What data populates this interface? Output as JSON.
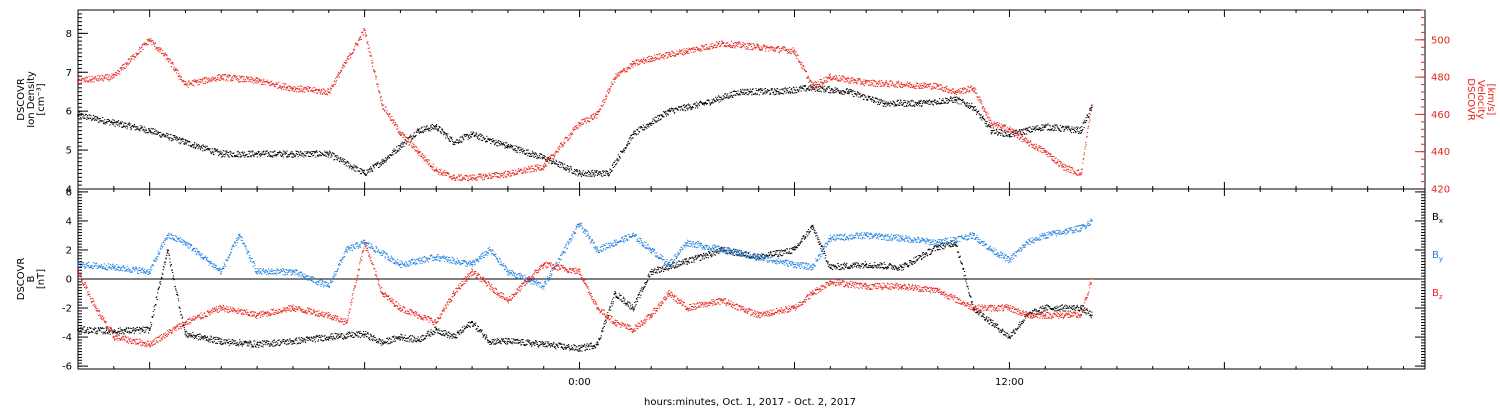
{
  "xlabel": "hours:minutes, Oct.  1, 2017 - Oct.  2, 2017",
  "colors": {
    "black": "#000000",
    "red": "#e8231b",
    "blue": "#1f7fe0"
  },
  "chart_data": [
    {
      "type": "scatter",
      "panel": "top",
      "title": "",
      "ylabel": [
        "DSCOVR",
        "Ion Density",
        "[cm⁻³]"
      ],
      "ylabel_right": [
        "DSCOVR",
        "Velocity",
        "[km/s]"
      ],
      "x_range_hours": [
        -14.0,
        23.6
      ],
      "x_ticks": [
        {
          "x": 0,
          "label": "0:00"
        },
        {
          "x": 12,
          "label": "12:00"
        }
      ],
      "ylim": [
        4,
        8.6
      ],
      "y_ticks": [
        4,
        5,
        6,
        7,
        8
      ],
      "y2lim": [
        420,
        516
      ],
      "y2_ticks": [
        420,
        440,
        460,
        480,
        500
      ],
      "series": [
        {
          "name": "",
          "axis": "left",
          "color": "#000000",
          "x": [
            -14.0,
            -13.0,
            -12.0,
            -11.0,
            -10.0,
            -9.0,
            -8.0,
            -7.0,
            -6.0,
            -5.5,
            -5.0,
            -4.5,
            -4.0,
            -3.5,
            -3.0,
            -2.0,
            -1.0,
            0.0,
            0.8,
            1.5,
            2.5,
            3.5,
            4.5,
            5.5,
            6.5,
            7.5,
            8.5,
            9.5,
            10.5,
            11.0,
            11.5,
            12.0,
            12.5,
            13.0,
            14.0,
            14.3
          ],
          "y": [
            5.9,
            5.7,
            5.5,
            5.2,
            4.9,
            4.9,
            4.9,
            4.9,
            4.4,
            4.7,
            5.1,
            5.5,
            5.6,
            5.2,
            5.4,
            5.1,
            4.8,
            4.4,
            4.4,
            5.4,
            6.0,
            6.2,
            6.5,
            6.5,
            6.6,
            6.5,
            6.2,
            6.2,
            6.3,
            6.1,
            5.5,
            5.4,
            5.5,
            5.6,
            5.5,
            6.1
          ]
        },
        {
          "name": "",
          "axis": "right",
          "color": "#e8231b",
          "x": [
            -14.0,
            -13.0,
            -12.0,
            -11.5,
            -11.0,
            -10.0,
            -9.0,
            -8.0,
            -7.0,
            -6.0,
            -5.5,
            -5.0,
            -4.5,
            -4.0,
            -3.5,
            -3.0,
            -2.0,
            -1.0,
            0.0,
            0.5,
            1.0,
            1.5,
            2.0,
            2.5,
            3.0,
            4.0,
            5.0,
            6.0,
            6.5,
            7.0,
            8.0,
            9.0,
            10.0,
            10.5,
            11.0,
            11.5,
            12.0,
            12.5,
            13.0,
            13.5,
            14.0,
            14.3
          ],
          "y": [
            478,
            480,
            500,
            490,
            476,
            480,
            478,
            474,
            472,
            505,
            465,
            450,
            440,
            430,
            426,
            426,
            428,
            432,
            455,
            460,
            480,
            487,
            490,
            492,
            494,
            498,
            496,
            494,
            475,
            480,
            477,
            476,
            475,
            472,
            474,
            455,
            452,
            445,
            440,
            432,
            428,
            465
          ]
        }
      ]
    },
    {
      "type": "scatter",
      "panel": "bottom",
      "title": "",
      "ylabel": [
        "DSCOVR",
        "B",
        "[nT]"
      ],
      "x_range_hours": [
        -14.0,
        23.6
      ],
      "x_ticks": [
        {
          "x": 0,
          "label": "0:00"
        },
        {
          "x": 12,
          "label": "12:00"
        }
      ],
      "ylim": [
        -6.2,
        6.2
      ],
      "y_ticks": [
        -6,
        -4,
        -2,
        0,
        2,
        4,
        6
      ],
      "zero_line": true,
      "legend": "right",
      "series": [
        {
          "name": "Bx",
          "base": "B",
          "sub": "x",
          "color": "#000000",
          "x": [
            -14.0,
            -13.0,
            -12.0,
            -11.5,
            -11.0,
            -10.0,
            -9.0,
            -8.0,
            -7.0,
            -6.0,
            -5.5,
            -5.0,
            -4.5,
            -4.0,
            -3.5,
            -3.0,
            -2.5,
            -2.0,
            -1.0,
            0.0,
            0.5,
            1.0,
            1.5,
            2.0,
            3.0,
            4.0,
            5.0,
            6.0,
            6.5,
            7.0,
            8.0,
            9.0,
            10.0,
            10.5,
            11.0,
            11.5,
            12.0,
            12.5,
            13.0,
            14.0,
            14.3
          ],
          "y": [
            -3.5,
            -3.6,
            -3.5,
            2.0,
            -3.8,
            -4.3,
            -4.5,
            -4.3,
            -4.0,
            -3.8,
            -4.4,
            -4.0,
            -4.2,
            -3.5,
            -4.0,
            -3.0,
            -4.3,
            -4.3,
            -4.5,
            -4.8,
            -4.5,
            -1.0,
            -2.0,
            0.5,
            1.2,
            2.0,
            1.5,
            2.0,
            3.6,
            0.8,
            1.0,
            0.8,
            2.2,
            2.5,
            -2.0,
            -3.0,
            -4.0,
            -2.5,
            -2.0,
            -2.0,
            -2.5
          ]
        },
        {
          "name": "By",
          "base": "B",
          "sub": "y",
          "color": "#1f7fe0",
          "x": [
            -14.0,
            -13.0,
            -12.0,
            -11.5,
            -11.0,
            -10.0,
            -9.5,
            -9.0,
            -8.0,
            -7.0,
            -6.5,
            -6.0,
            -5.0,
            -4.0,
            -3.0,
            -2.5,
            -2.0,
            -1.0,
            0.0,
            0.5,
            1.0,
            1.5,
            2.0,
            2.5,
            3.0,
            4.0,
            5.0,
            6.0,
            6.5,
            7.0,
            8.0,
            9.0,
            10.0,
            11.0,
            11.5,
            12.0,
            12.5,
            13.0,
            14.0,
            14.3
          ],
          "y": [
            1.0,
            0.8,
            0.5,
            3.0,
            2.5,
            0.5,
            3.0,
            0.5,
            0.5,
            -0.5,
            2.0,
            2.5,
            1.0,
            1.5,
            1.0,
            2.0,
            0.5,
            -0.5,
            3.8,
            2.0,
            2.5,
            3.0,
            2.0,
            1.0,
            2.5,
            2.0,
            1.5,
            1.0,
            0.8,
            2.8,
            3.0,
            2.8,
            2.5,
            3.0,
            2.0,
            1.3,
            2.5,
            3.0,
            3.5,
            4.0
          ]
        },
        {
          "name": "Bz",
          "base": "B",
          "sub": "z",
          "color": "#e8231b",
          "x": [
            -14.0,
            -13.5,
            -13.0,
            -12.0,
            -11.0,
            -10.0,
            -9.0,
            -8.0,
            -7.0,
            -6.5,
            -6.0,
            -5.5,
            -5.0,
            -4.0,
            -3.5,
            -3.0,
            -2.0,
            -1.0,
            0.0,
            0.5,
            1.0,
            1.5,
            2.0,
            2.5,
            3.0,
            4.0,
            5.0,
            6.0,
            6.5,
            7.0,
            8.0,
            9.0,
            10.0,
            11.0,
            12.0,
            12.5,
            13.0,
            14.0,
            14.3
          ],
          "y": [
            0.5,
            -2.0,
            -4.0,
            -4.5,
            -3.0,
            -2.0,
            -2.5,
            -2.0,
            -2.5,
            -3.0,
            2.5,
            -1.0,
            -2.0,
            -3.0,
            -1.0,
            0.5,
            -1.5,
            1.0,
            0.5,
            -2.0,
            -3.0,
            -3.5,
            -2.5,
            -1.0,
            -2.0,
            -1.5,
            -2.5,
            -2.0,
            -1.0,
            -0.2,
            -0.5,
            -0.5,
            -0.8,
            -2.0,
            -2.0,
            -2.5,
            -2.5,
            -2.5,
            0.0
          ]
        }
      ]
    }
  ]
}
